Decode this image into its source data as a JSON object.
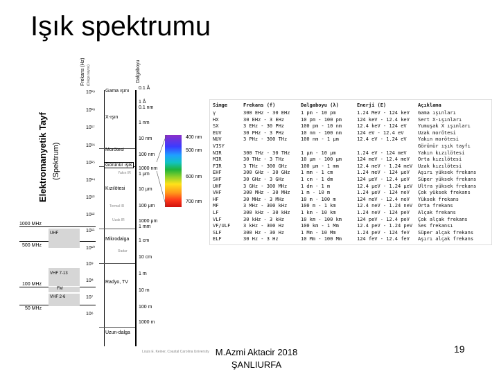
{
  "slide": {
    "title": "Işık spektrumu",
    "footer_line1": "M.Azmi Aktacir 2018",
    "footer_line2": "ŞANLIURFA",
    "page_number": "19"
  },
  "diagram": {
    "axis_freq": "Frekans (Hz)",
    "axis_freq_sub": "(Dalga sayısı)",
    "axis_wave": "Dalgaboyu",
    "side_title": "Elektromanyetik Tayf",
    "side_title_sub": "(Spektrum)",
    "freq_ticks": [
      "10¹⁹",
      "10¹⁸",
      "10¹⁷",
      "10¹⁶",
      "10¹⁵",
      "10¹⁴",
      "10¹³",
      "10¹²",
      "10¹¹",
      "10¹⁰",
      "10⁹",
      "10⁸",
      "10⁷",
      "10⁶"
    ],
    "wave_ticks": [
      "0.1 Å",
      "1 Å",
      "0.1 nm",
      "1 nm",
      "10 nm",
      "100 nm",
      "1000 nm",
      "1 μm",
      "10 μm",
      "100 μm",
      "1000 μm",
      "1 mm",
      "1 cm",
      "10 cm",
      "1 m",
      "10 m",
      "100 m",
      "1000 m"
    ],
    "regions": [
      "Gama ışını",
      "X-ışın",
      "Morötesi",
      "Görünür ışık",
      "Kızılötesi",
      "Mikrodalga",
      "Radyo, TV",
      "Uzun-dalga"
    ],
    "minor_labels": [
      "Yakın IR",
      "Termal IR",
      "Uzak IR",
      "Radar"
    ],
    "left_freqs": [
      "1000 MHz",
      "500 MHz",
      "100 MHz",
      "50 MHz"
    ],
    "bands": [
      "UHF",
      "VHF 7-13",
      "FM",
      "VHF 2-6"
    ],
    "vis_nm": [
      "400 nm",
      "500 nm",
      "600 nm",
      "700 nm"
    ],
    "credit": "Louis E. Keiner, Coastal Carolina University",
    "spectrum_colors": [
      "#8b2fc9",
      "#3b3bff",
      "#1fa0ff",
      "#12c3c3",
      "#1fb43a",
      "#8fd02a",
      "#ffe21a",
      "#ff9a1a",
      "#ff3a1a",
      "#d0100c"
    ]
  },
  "table": {
    "headers": [
      "Simge",
      "Frekans (f)",
      "Dalgaboyu (λ)",
      "Enerji (E)",
      "Açıklama"
    ],
    "rows": [
      [
        "γ",
        "300 EHz - 30 EHz",
        "1 pm - 10 pm",
        "1.24 MeV - 124 keV",
        "Gama ışınları"
      ],
      [
        "HX",
        "30 EHz - 3 EHz",
        "10 pm - 100 pm",
        "124 keV - 12.4 keV",
        "Sert X-ışınları"
      ],
      [
        "SX",
        "3 EHz - 30 PHz",
        "100 pm - 10 nm",
        "12.4 keV - 124 eV",
        "Yumuşak X ışınları"
      ],
      [
        "EUV",
        "30 PHz - 3 PHz",
        "10 nm - 100 nm",
        "124 eV - 12.4 eV",
        "Uzak morötesi"
      ],
      [
        "NUV",
        "3 PHz - 300 THz",
        "100 nm - 1 μm",
        "12.4 eV - 1.24 eV",
        "Yakın morötesi"
      ],
      [
        "VISY",
        "",
        "",
        "",
        "Görünür ışık tayfı"
      ],
      [
        "NIR",
        "300 THz - 30 THz",
        "1 μm - 10 μm",
        "1.24 eV - 124 meV",
        "Yakın kızılötesi"
      ],
      [
        "MIR",
        "30 THz - 3 THz",
        "10 μm - 100 μm",
        "124 meV - 12.4 meV",
        "Orta kızılötesi"
      ],
      [
        "FIR",
        "3 THz - 300 GHz",
        "100 μm - 1 mm",
        "12.4 meV - 1.24 meV",
        "Uzak kızılötesi"
      ],
      [
        "EHF",
        "300 GHz - 30 GHz",
        "1 mm - 1 cm",
        "1.24 meV - 124 μeV",
        "Aşırı yüksek frekans"
      ],
      [
        "SHF",
        "30 GHz - 3 GHz",
        "1 cm - 1 dm",
        "124 μeV - 12.4 μeV",
        "Süper yüksek frekans"
      ],
      [
        "UHF",
        "3 GHz - 300 MHz",
        "1 dm - 1 m",
        "12.4 μeV - 1.24 μeV",
        "Ultra yüksek frekans"
      ],
      [
        "VHF",
        "300 MHz - 30 MHz",
        "1 m - 10 m",
        "1.24 μeV - 124 neV",
        "Çok yüksek frekans"
      ],
      [
        "HF",
        "30 MHz - 3 MHz",
        "10 m - 100 m",
        "124 neV - 12.4 neV",
        "Yüksek frekans"
      ],
      [
        "MF",
        "3 MHz - 300 kHz",
        "100 m - 1 km",
        "12.4 neV - 1.24 neV",
        "Orta frekans"
      ],
      [
        "LF",
        "300 kHz - 30 kHz",
        "1 km - 10 km",
        "1.24 neV - 124 peV",
        "Alçak frekans"
      ],
      [
        "VLF",
        "30 kHz - 3 kHz",
        "10 km - 100 km",
        "124 peV - 12.4 peV",
        "Çok alçak frekans"
      ],
      [
        "VF/ULF",
        "3 kHz - 300 Hz",
        "100 km - 1 Mm",
        "12.4 peV - 1.24 peV",
        "Ses frekansı"
      ],
      [
        "SLF",
        "300 Hz - 30 Hz",
        "1 Mm - 10 Mm",
        "1.24 peV - 124 feV",
        "Süper alçak frekans"
      ],
      [
        "ELF",
        "30 Hz - 3 Hz",
        "10 Mm - 100 Mm",
        "124 feV - 12.4 feV",
        "Aşırı alçak frekans"
      ]
    ]
  }
}
